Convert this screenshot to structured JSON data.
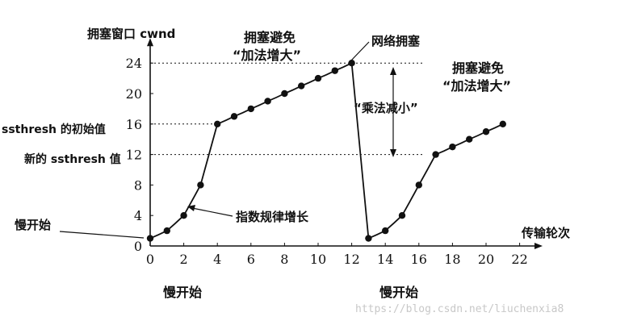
{
  "chart_data": {
    "type": "line",
    "ylabel": "拥塞窗口 cwnd",
    "xlabel": "传输轮次",
    "x_ticks": [
      0,
      2,
      4,
      6,
      8,
      10,
      12,
      14,
      16,
      18,
      20,
      22
    ],
    "y_ticks": [
      4,
      8,
      12,
      16,
      20,
      24
    ],
    "xlim": [
      0,
      22.5
    ],
    "ylim": [
      0,
      26
    ],
    "grid": false,
    "reference_lines": [
      {
        "y": 24,
        "label": ""
      },
      {
        "y": 16,
        "label": "ssthresh 的初始值"
      },
      {
        "y": 12,
        "label": "新的 ssthresh 值"
      }
    ],
    "series": [
      {
        "x": [
          0,
          1,
          2,
          3,
          4,
          5,
          6,
          7,
          8,
          9,
          10,
          11,
          12,
          13,
          14,
          15,
          16,
          17,
          18,
          19,
          20,
          21
        ],
        "y": [
          1,
          2,
          4,
          8,
          16,
          17,
          18,
          19,
          20,
          21,
          22,
          23,
          24,
          1,
          2,
          4,
          8,
          12,
          13,
          14,
          15,
          16
        ]
      }
    ],
    "annotations": {
      "slow_start_left": "慢开始",
      "exponential": "指数规律增长",
      "ca1_line1": "拥塞避免",
      "ca1_line2": "“加法增大”",
      "congestion": "网络拥塞",
      "multiplicative": "“乘法减小”",
      "ca2_line1": "拥塞避免",
      "ca2_line2": "“加法增大”",
      "slow_start_bottom1": "慢开始",
      "slow_start_bottom2": "慢开始"
    }
  },
  "watermark": "https://blog.csdn.net/liuchenxia8",
  "colors": {
    "ink": "#111111",
    "watermark": "#c8c8c8"
  }
}
